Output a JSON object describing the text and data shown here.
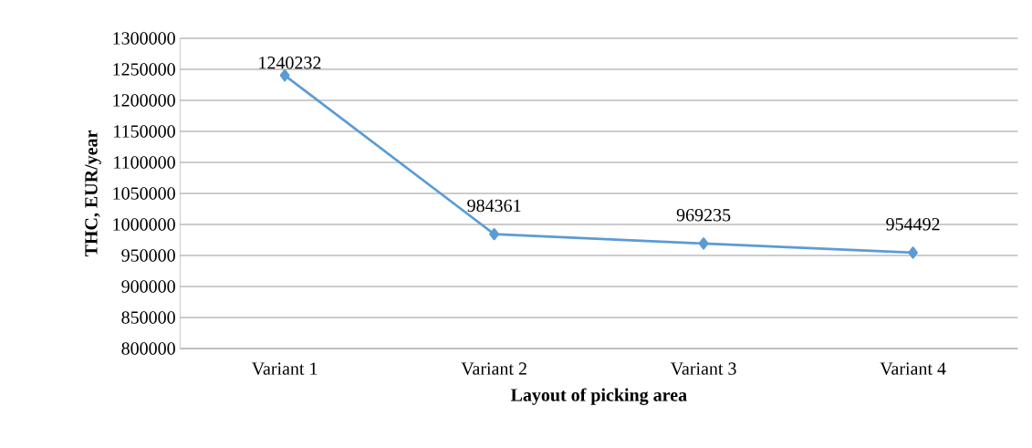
{
  "chart_data": {
    "type": "line",
    "xlabel": "Layout of  picking area",
    "ylabel": "THC, EUR/year",
    "categories": [
      "Variant 1",
      "Variant 2",
      "Variant 3",
      "Variant 4"
    ],
    "series": [
      {
        "color": "#5b9bd5",
        "values": [
          1240232,
          984361,
          969235,
          954492
        ]
      }
    ],
    "ylim": [
      800000,
      1300000
    ],
    "yticks": [
      800000,
      850000,
      900000,
      950000,
      1000000,
      1050000,
      1100000,
      1150000,
      1200000,
      1250000,
      1300000
    ],
    "grid": "y",
    "marker": "diamond",
    "line_style": "solid",
    "data_labels": true
  }
}
